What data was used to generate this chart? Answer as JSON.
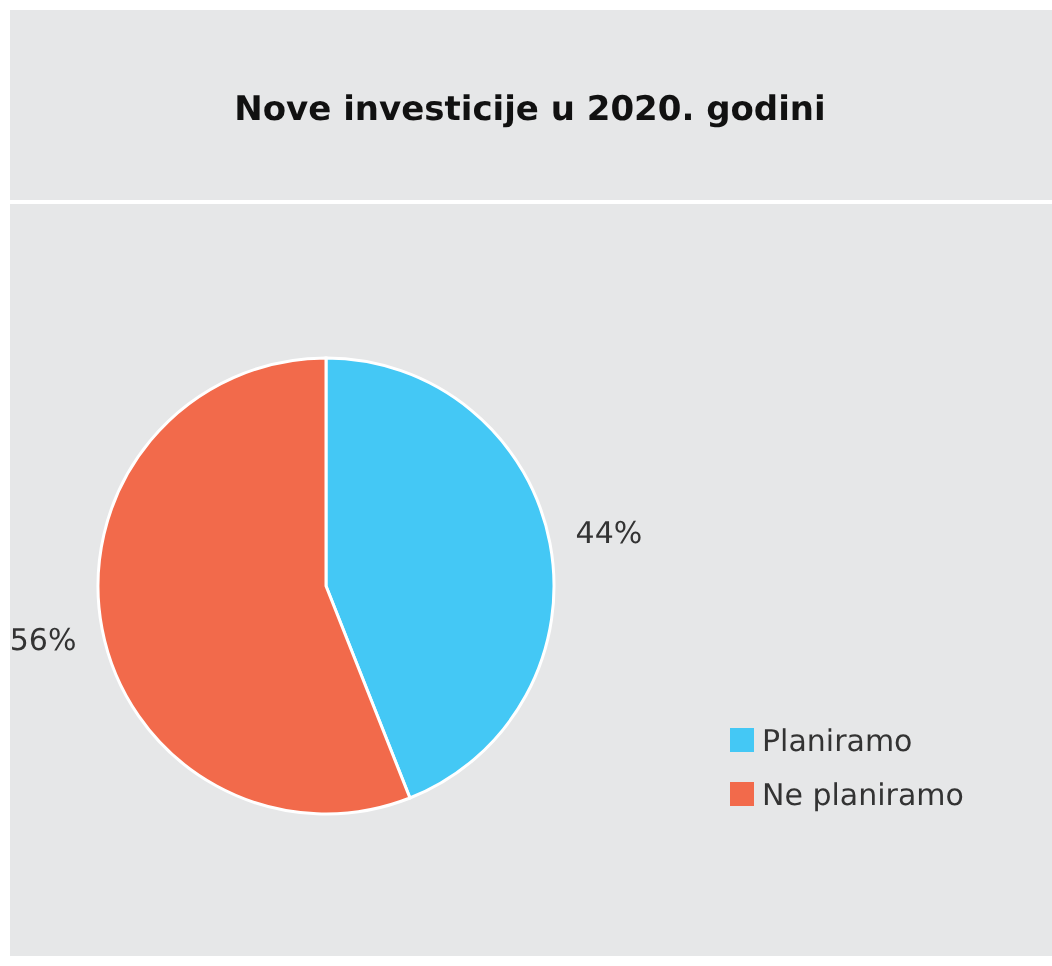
{
  "chart_data": {
    "type": "pie",
    "title": "Nove investicije u 2020. godini",
    "categories": [
      "Planiramo",
      "Ne planiramo"
    ],
    "values": [
      44,
      56
    ],
    "colors": [
      "#44c8f5",
      "#f26a4b"
    ],
    "value_labels": [
      "44%",
      "56%"
    ],
    "legend": "right"
  }
}
